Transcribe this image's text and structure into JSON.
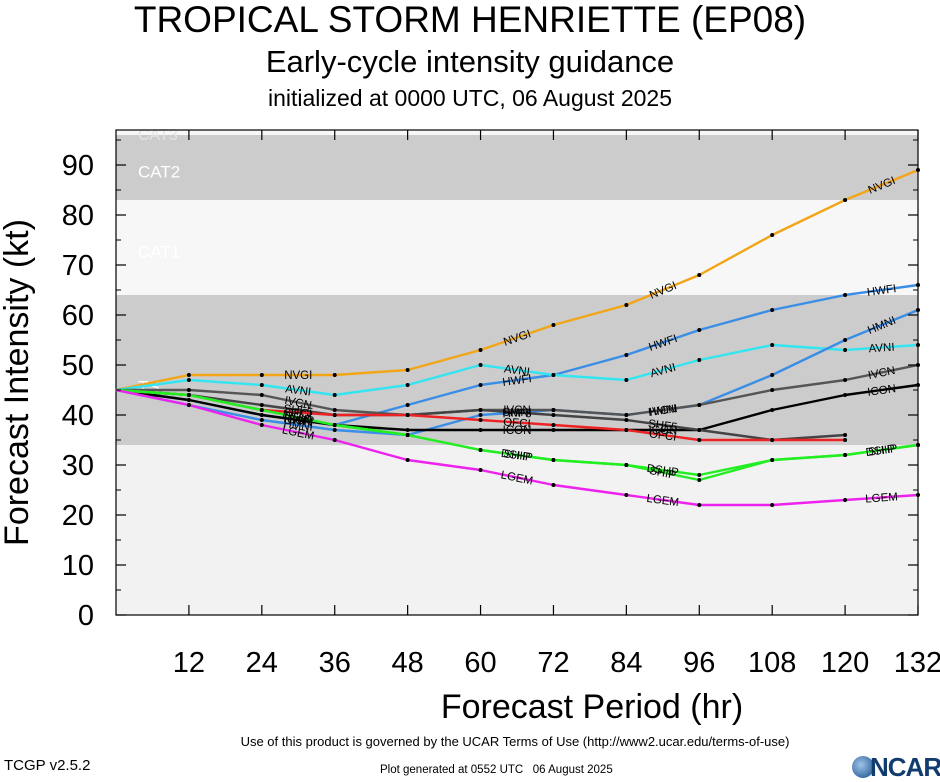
{
  "title": "TROPICAL STORM HENRIETTE (EP08)",
  "subtitle": "Early-cycle intensity guidance",
  "init_line": "initialized at 0000 UTC, 06 August 2025",
  "footer": {
    "terms": "Use of this product is governed by the UCAR Terms of Use (http://www2.ucar.edu/terms-of-use)",
    "version": "TCGP v2.5.2",
    "generated": "Plot generated at 0552 UTC   06 August 2025",
    "logo": "NCAR"
  },
  "chart_data": {
    "type": "line",
    "title": "TROPICAL STORM HENRIETTE (EP08)",
    "xlabel": "Forecast Period (hr)",
    "ylabel": "Forecast Intensity (kt)",
    "xlim": [
      0,
      132
    ],
    "ylim": [
      0,
      97
    ],
    "x_ticks": [
      12,
      24,
      36,
      48,
      60,
      72,
      84,
      96,
      108,
      120,
      132
    ],
    "y_ticks": [
      0,
      10,
      20,
      30,
      40,
      50,
      60,
      70,
      80,
      90
    ],
    "bands": [
      {
        "label": "TS",
        "min": 34,
        "max": 64,
        "color": "#cccccc"
      },
      {
        "label": "CAT1",
        "min": 64,
        "max": 83,
        "color": "#f7f7f7"
      },
      {
        "label": "CAT2",
        "min": 83,
        "max": 96,
        "color": "#cccccc"
      },
      {
        "label": "CAT3",
        "min": 96,
        "max": 113,
        "color": "#f7f7f7"
      }
    ],
    "below_band_color": "#f2f2f2",
    "series": [
      {
        "name": "NVGI",
        "color": "#f2a516",
        "x": [
          0,
          12,
          24,
          36,
          48,
          60,
          72,
          84,
          96,
          108,
          120,
          132
        ],
        "y": [
          45,
          48,
          48,
          48,
          49,
          53,
          58,
          62,
          68,
          76,
          83,
          89
        ]
      },
      {
        "name": "HWFI",
        "color": "#3a8ee6",
        "x": [
          0,
          12,
          24,
          36,
          48,
          60,
          72,
          84,
          96,
          108,
          120,
          132
        ],
        "y": [
          45,
          43,
          40,
          38,
          42,
          46,
          48,
          52,
          57,
          61,
          64,
          66
        ]
      },
      {
        "name": "AVNI",
        "color": "#33e5f0",
        "x": [
          0,
          12,
          24,
          36,
          48,
          60,
          72,
          84,
          96,
          108,
          120,
          132
        ],
        "y": [
          45,
          47,
          46,
          44,
          46,
          50,
          48,
          47,
          51,
          54,
          53,
          54
        ]
      },
      {
        "name": "HMNI",
        "color": "#3a8ee6",
        "x": [
          0,
          12,
          24,
          36,
          48,
          60,
          72,
          84,
          96,
          108,
          120,
          132
        ],
        "y": [
          45,
          42,
          39,
          37,
          36,
          40,
          41,
          40,
          42,
          48,
          55,
          61
        ]
      },
      {
        "name": "IVCN",
        "color": "#555555",
        "x": [
          0,
          12,
          24,
          36,
          48,
          60,
          72,
          84,
          96,
          108,
          120,
          132
        ],
        "y": [
          45,
          45,
          44,
          41,
          40,
          41,
          41,
          40,
          42,
          45,
          47,
          50
        ]
      },
      {
        "name": "ICON",
        "color": "#000000",
        "x": [
          0,
          12,
          24,
          36,
          48,
          60,
          72,
          84,
          96,
          108,
          120,
          132
        ],
        "y": [
          45,
          43,
          40,
          38,
          37,
          37,
          37,
          37,
          37,
          41,
          44,
          46
        ]
      },
      {
        "name": "SHF5",
        "color": "#444444",
        "x": [
          0,
          12,
          24,
          36,
          48,
          60,
          72,
          84,
          96,
          108,
          120
        ],
        "y": [
          45,
          44,
          42,
          40,
          40,
          41,
          40,
          39,
          37,
          35,
          36
        ]
      },
      {
        "name": "OFCI",
        "color": "#ee2222",
        "x": [
          0,
          12,
          24,
          36,
          48,
          60,
          72,
          84,
          96,
          108,
          120
        ],
        "y": [
          45,
          44,
          41,
          40,
          40,
          39,
          38,
          37,
          35,
          35,
          35
        ]
      },
      {
        "name": "SHIP",
        "color": "#22ee22",
        "x": [
          0,
          12,
          24,
          36,
          48,
          60,
          72,
          84,
          96,
          108,
          120,
          132
        ],
        "y": [
          45,
          44,
          41,
          38,
          36,
          33,
          31,
          30,
          27,
          31,
          32,
          34
        ]
      },
      {
        "name": "DSHP",
        "color": "#22ee22",
        "x": [
          0,
          12,
          24,
          36,
          48,
          60,
          72,
          84,
          96,
          108,
          120,
          132
        ],
        "y": [
          45,
          44,
          41,
          38,
          36,
          33,
          31,
          30,
          28,
          31,
          32,
          34
        ]
      },
      {
        "name": "LGEM",
        "color": "#ee22ee",
        "x": [
          0,
          12,
          24,
          36,
          48,
          60,
          72,
          84,
          96,
          108,
          120,
          132
        ],
        "y": [
          45,
          42,
          38,
          35,
          31,
          29,
          26,
          24,
          22,
          22,
          23,
          24
        ]
      }
    ]
  }
}
